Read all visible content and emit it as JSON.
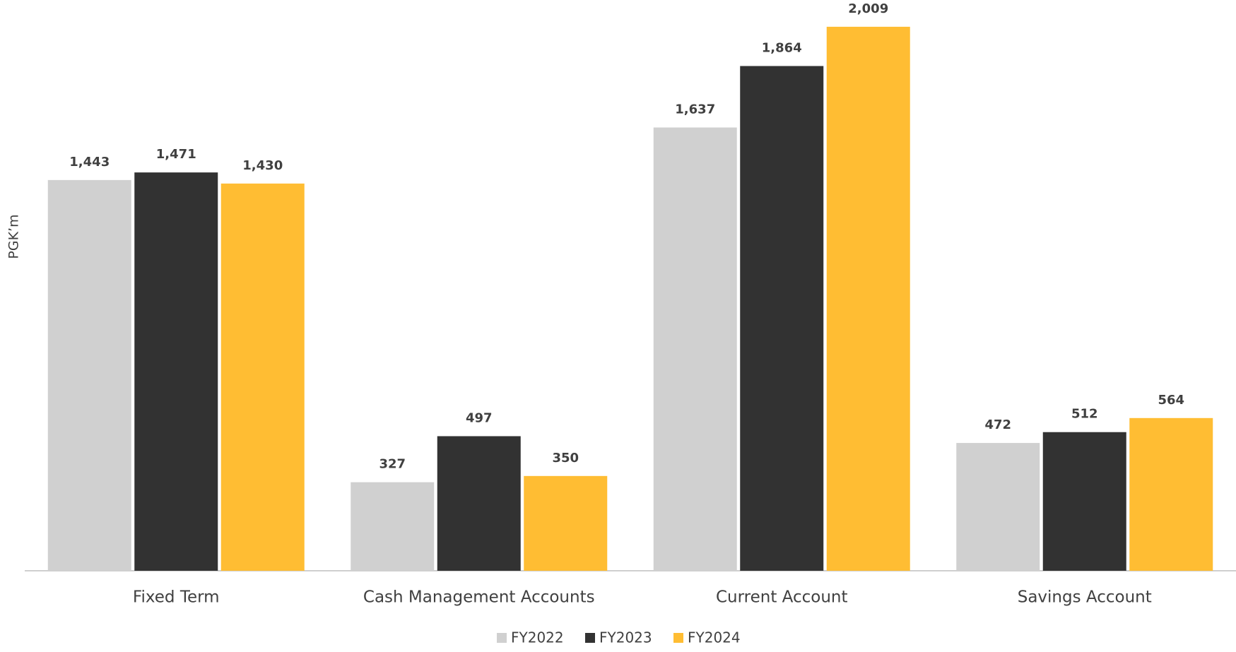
{
  "chart_data": {
    "type": "bar",
    "y_label": "PGK’m",
    "categories": [
      "Fixed Term",
      "Cash Management Accounts",
      "Current Account",
      "Savings Account"
    ],
    "series": [
      {
        "name": "FY2022",
        "color": "#d0d0d0",
        "values": [
          1443,
          327,
          1637,
          472
        ],
        "value_labels": [
          "1,443",
          "327",
          "1,637",
          "472"
        ]
      },
      {
        "name": "FY2023",
        "color": "#323232",
        "values": [
          1471,
          497,
          1864,
          512
        ],
        "value_labels": [
          "1,471",
          "497",
          "1,864",
          "512"
        ]
      },
      {
        "name": "FY2024",
        "color": "#ffbd33",
        "values": [
          1430,
          350,
          2009,
          564
        ],
        "value_labels": [
          "1,430",
          "350",
          "2,009",
          "564"
        ]
      }
    ],
    "ylim": [
      0,
      2100
    ],
    "grid": false
  }
}
